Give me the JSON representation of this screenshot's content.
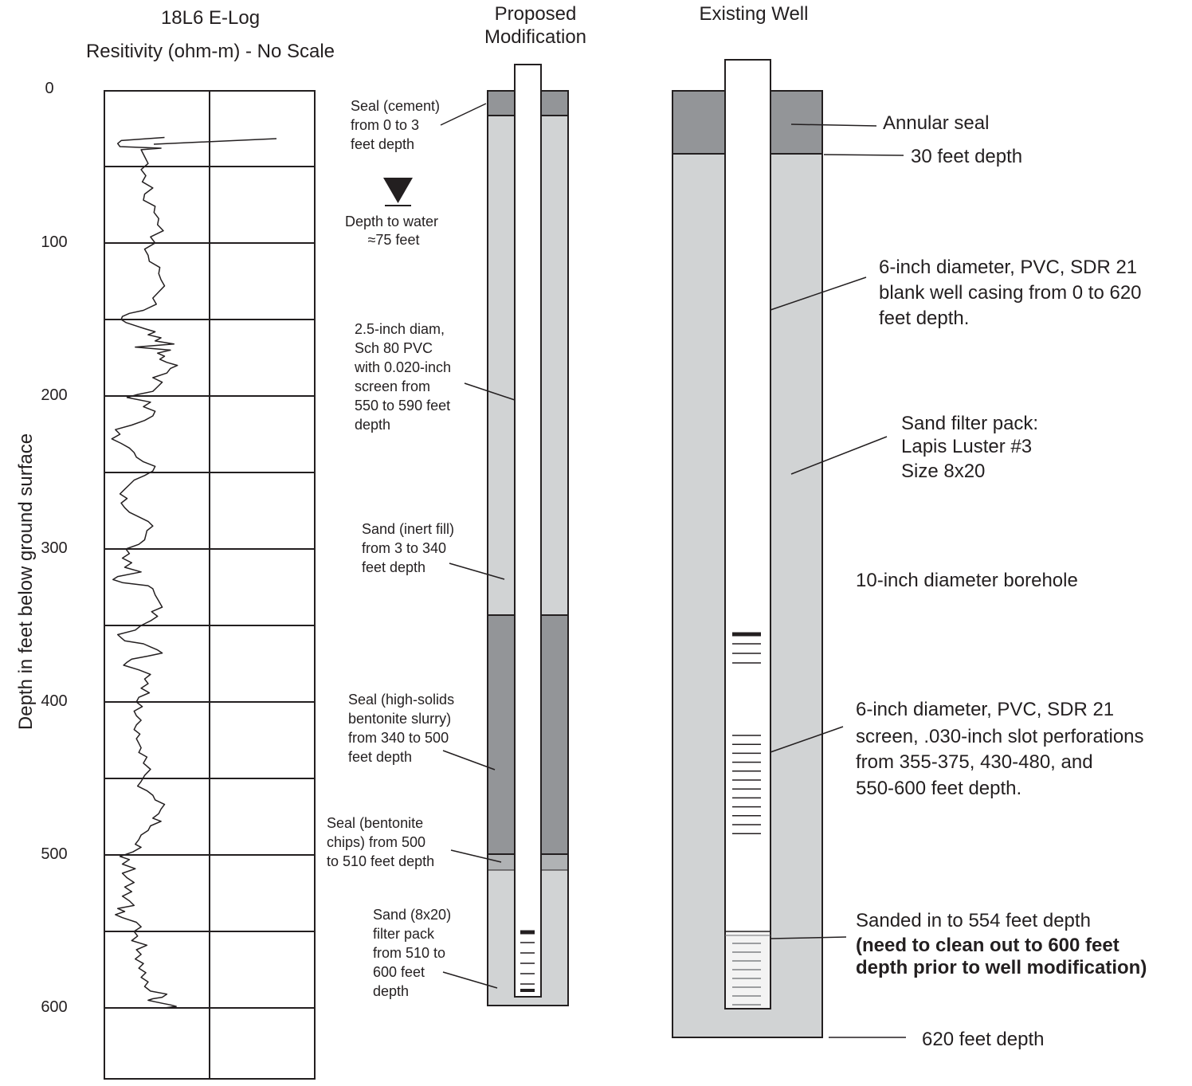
{
  "elog": {
    "title": "18L6 E-Log",
    "subtitle": "Resitivity (ohm-m) - No Scale",
    "y_axis_label": "Depth in feet below ground surface",
    "depth_ticks": [
      "0",
      "100",
      "200",
      "300",
      "400",
      "500",
      "600"
    ],
    "trace_feet_and_relative_resistivity": [
      [
        31,
        0.5
      ],
      [
        33,
        0.13
      ],
      [
        35,
        0.1
      ],
      [
        37,
        0.12
      ],
      [
        38,
        0.47
      ],
      [
        39,
        0.3
      ],
      [
        42,
        0.32
      ],
      [
        48,
        0.36
      ],
      [
        52,
        0.3
      ],
      [
        56,
        0.34
      ],
      [
        60,
        0.31
      ],
      [
        64,
        0.4
      ],
      [
        68,
        0.33
      ],
      [
        72,
        0.32
      ],
      [
        76,
        0.42
      ],
      [
        80,
        0.41
      ],
      [
        84,
        0.45
      ],
      [
        88,
        0.44
      ],
      [
        92,
        0.49
      ],
      [
        96,
        0.38
      ],
      [
        100,
        0.42
      ],
      [
        104,
        0.33
      ],
      [
        108,
        0.36
      ],
      [
        112,
        0.37
      ],
      [
        116,
        0.46
      ],
      [
        120,
        0.45
      ],
      [
        124,
        0.47
      ],
      [
        128,
        0.5
      ],
      [
        132,
        0.45
      ],
      [
        136,
        0.4
      ],
      [
        140,
        0.43
      ],
      [
        144,
        0.32
      ],
      [
        146,
        0.2
      ],
      [
        148,
        0.14
      ],
      [
        150,
        0.13
      ],
      [
        152,
        0.17
      ],
      [
        154,
        0.25
      ],
      [
        156,
        0.33
      ],
      [
        158,
        0.42
      ],
      [
        160,
        0.36
      ],
      [
        162,
        0.47
      ],
      [
        164,
        0.42
      ],
      [
        166,
        0.58
      ],
      [
        168,
        0.25
      ],
      [
        170,
        0.55
      ],
      [
        172,
        0.44
      ],
      [
        174,
        0.5
      ],
      [
        176,
        0.46
      ],
      [
        178,
        0.52
      ],
      [
        180,
        0.61
      ],
      [
        182,
        0.55
      ],
      [
        185,
        0.52
      ],
      [
        188,
        0.4
      ],
      [
        191,
        0.48
      ],
      [
        194,
        0.44
      ],
      [
        197,
        0.4
      ],
      [
        199,
        0.27
      ],
      [
        201,
        0.18
      ],
      [
        204,
        0.38
      ],
      [
        207,
        0.32
      ],
      [
        210,
        0.42
      ],
      [
        213,
        0.4
      ],
      [
        216,
        0.33
      ],
      [
        219,
        0.22
      ],
      [
        222,
        0.08
      ],
      [
        225,
        0.12
      ],
      [
        228,
        0.05
      ],
      [
        231,
        0.13
      ],
      [
        234,
        0.2
      ],
      [
        237,
        0.24
      ],
      [
        240,
        0.26
      ],
      [
        243,
        0.32
      ],
      [
        246,
        0.42
      ],
      [
        249,
        0.4
      ],
      [
        252,
        0.33
      ],
      [
        255,
        0.24
      ],
      [
        258,
        0.2
      ],
      [
        261,
        0.16
      ],
      [
        264,
        0.12
      ],
      [
        267,
        0.18
      ],
      [
        270,
        0.13
      ],
      [
        273,
        0.16
      ],
      [
        276,
        0.2
      ],
      [
        279,
        0.28
      ],
      [
        282,
        0.36
      ],
      [
        285,
        0.4
      ],
      [
        288,
        0.35
      ],
      [
        291,
        0.34
      ],
      [
        294,
        0.33
      ],
      [
        297,
        0.28
      ],
      [
        300,
        0.17
      ],
      [
        303,
        0.2
      ],
      [
        306,
        0.14
      ],
      [
        309,
        0.22
      ],
      [
        312,
        0.16
      ],
      [
        315,
        0.3
      ],
      [
        318,
        0.1
      ],
      [
        320,
        0.06
      ],
      [
        322,
        0.14
      ],
      [
        324,
        0.36
      ],
      [
        326,
        0.4
      ],
      [
        330,
        0.42
      ],
      [
        334,
        0.45
      ],
      [
        338,
        0.48
      ],
      [
        341,
        0.39
      ],
      [
        344,
        0.44
      ],
      [
        347,
        0.38
      ],
      [
        350,
        0.3
      ],
      [
        353,
        0.25
      ],
      [
        356,
        0.1
      ],
      [
        358,
        0.13
      ],
      [
        360,
        0.16
      ],
      [
        362,
        0.32
      ],
      [
        364,
        0.38
      ],
      [
        366,
        0.44
      ],
      [
        368,
        0.48
      ],
      [
        370,
        0.36
      ],
      [
        372,
        0.22
      ],
      [
        374,
        0.18
      ],
      [
        376,
        0.15
      ],
      [
        379,
        0.28
      ],
      [
        382,
        0.38
      ],
      [
        385,
        0.33
      ],
      [
        388,
        0.36
      ],
      [
        391,
        0.3
      ],
      [
        394,
        0.37
      ],
      [
        397,
        0.28
      ],
      [
        400,
        0.26
      ],
      [
        403,
        0.31
      ],
      [
        406,
        0.24
      ],
      [
        409,
        0.26
      ],
      [
        412,
        0.3
      ],
      [
        415,
        0.26
      ],
      [
        418,
        0.24
      ],
      [
        421,
        0.29
      ],
      [
        424,
        0.26
      ],
      [
        427,
        0.28
      ],
      [
        430,
        0.3
      ],
      [
        433,
        0.28
      ],
      [
        436,
        0.35
      ],
      [
        440,
        0.32
      ],
      [
        444,
        0.38
      ],
      [
        448,
        0.33
      ],
      [
        452,
        0.3
      ],
      [
        455,
        0.27
      ],
      [
        458,
        0.35
      ],
      [
        461,
        0.4
      ],
      [
        464,
        0.42
      ],
      [
        467,
        0.5
      ],
      [
        470,
        0.47
      ],
      [
        473,
        0.45
      ],
      [
        476,
        0.4
      ],
      [
        478,
        0.47
      ],
      [
        481,
        0.38
      ],
      [
        484,
        0.36
      ],
      [
        487,
        0.3
      ],
      [
        490,
        0.28
      ],
      [
        493,
        0.25
      ],
      [
        495,
        0.3
      ],
      [
        498,
        0.23
      ],
      [
        501,
        0.12
      ],
      [
        503,
        0.2
      ],
      [
        506,
        0.14
      ],
      [
        509,
        0.25
      ],
      [
        512,
        0.14
      ],
      [
        515,
        0.18
      ],
      [
        518,
        0.24
      ],
      [
        521,
        0.16
      ],
      [
        524,
        0.22
      ],
      [
        527,
        0.14
      ],
      [
        530,
        0.2
      ],
      [
        533,
        0.24
      ],
      [
        535,
        0.1
      ],
      [
        537,
        0.16
      ],
      [
        539,
        0.08
      ],
      [
        541,
        0.14
      ],
      [
        544,
        0.26
      ],
      [
        547,
        0.3
      ],
      [
        550,
        0.24
      ],
      [
        553,
        0.27
      ],
      [
        556,
        0.22
      ],
      [
        559,
        0.35
      ],
      [
        562,
        0.26
      ],
      [
        565,
        0.3
      ],
      [
        568,
        0.25
      ],
      [
        571,
        0.32
      ],
      [
        574,
        0.28
      ],
      [
        577,
        0.34
      ],
      [
        580,
        0.3
      ],
      [
        583,
        0.36
      ],
      [
        586,
        0.33
      ],
      [
        589,
        0.38
      ],
      [
        591,
        0.52
      ],
      [
        593,
        0.48
      ],
      [
        594,
        0.4
      ],
      [
        595,
        0.36
      ],
      [
        596,
        0.42
      ],
      [
        597,
        0.48
      ],
      [
        598,
        0.55
      ],
      [
        599,
        0.6
      ],
      [
        600,
        0.5
      ]
    ]
  },
  "proposed": {
    "title_line1": "Proposed",
    "title_line2": "Modification",
    "labels": {
      "cement_seal": [
        "Seal (cement)",
        "from 0 to 3",
        "feet depth"
      ],
      "water": [
        "Depth to water",
        "≈75 feet"
      ],
      "pipe": [
        "2.5-inch diam,",
        "Sch 80 PVC",
        "with 0.020-inch",
        "screen from",
        "550 to 590 feet",
        "depth"
      ],
      "inert_fill": [
        "Sand (inert fill)",
        "from 3 to 340",
        "feet depth"
      ],
      "slurry": [
        "Seal (high-solids",
        "bentonite slurry)",
        "from 340 to 500",
        "feet depth"
      ],
      "chips": [
        "Seal (bentonite",
        "chips) from 500",
        "to 510 feet depth"
      ],
      "filter_pack": [
        "Sand (8x20)",
        "filter pack",
        "from 510 to",
        "600 feet",
        "depth"
      ]
    }
  },
  "existing": {
    "title": "Existing Well",
    "labels": {
      "annular_seal": "Annular seal",
      "seal_depth": "30 feet depth",
      "casing": [
        "6-inch diameter, PVC, SDR 21",
        "blank well casing from 0 to 620",
        "feet depth."
      ],
      "filter_pack": [
        "Sand filter pack:",
        "Lapis Luster #3",
        "Size 8x20"
      ],
      "borehole": "10-inch diameter borehole",
      "screen": [
        "6-inch diameter, PVC, SDR 21",
        "screen, .030-inch slot perforations",
        "from 355-375, 430-480, and",
        "550-600 feet depth."
      ],
      "sanded": "Sanded in to 554 feet depth",
      "clean_out": [
        "(need to clean out to 600 feet",
        "depth prior to well modification)"
      ],
      "bottom_depth": "620 feet depth"
    }
  }
}
